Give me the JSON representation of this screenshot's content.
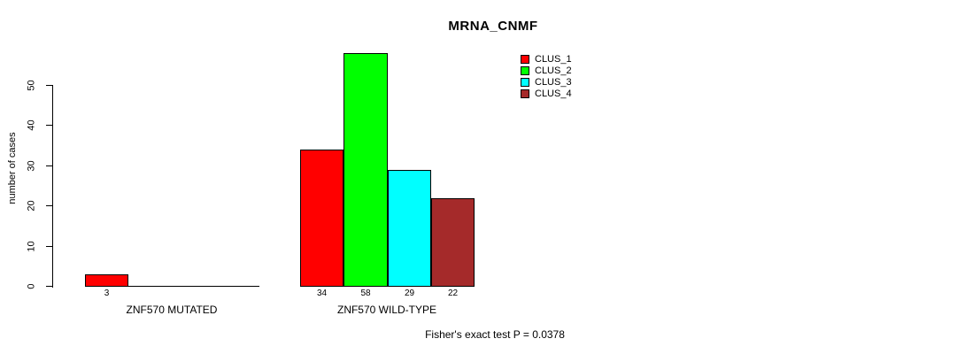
{
  "chart_data": {
    "type": "bar",
    "title": "MRNA_CNMF",
    "ylabel": "number of cases",
    "xlabel": "",
    "ylim": [
      0,
      58
    ],
    "yticks": [
      0,
      10,
      20,
      30,
      40,
      50
    ],
    "grid": false,
    "legend_position": "top-right",
    "legend": [
      {
        "label": "CLUS_1",
        "color": "#FF0000"
      },
      {
        "label": "CLUS_2",
        "color": "#00FF00"
      },
      {
        "label": "CLUS_3",
        "color": "#00FFFF"
      },
      {
        "label": "CLUS_4",
        "color": "#A52A2A"
      }
    ],
    "groups": [
      {
        "label": "ZNF570 MUTATED",
        "values": [
          3,
          0,
          0,
          0
        ],
        "bar_labels": [
          "3",
          "",
          "",
          ""
        ]
      },
      {
        "label": "ZNF570 WILD-TYPE",
        "values": [
          34,
          58,
          29,
          22
        ],
        "bar_labels": [
          "34",
          "58",
          "29",
          "22"
        ]
      }
    ],
    "annotation": "Fisher's exact test P = 0.0378"
  }
}
